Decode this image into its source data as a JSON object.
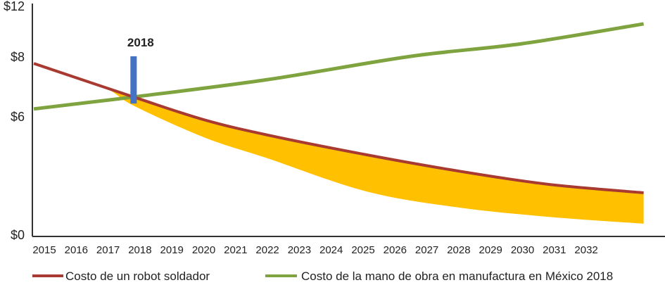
{
  "chart_data": {
    "type": "line",
    "title": "",
    "xlabel": "",
    "ylabel": "",
    "x_ticks": [
      2015,
      2016,
      2017,
      2018,
      2019,
      2020,
      2021,
      2022,
      2023,
      2024,
      2025,
      2026,
      2027,
      2028,
      2029,
      2030,
      2031,
      2032
    ],
    "y_ticks": [
      {
        "value": 12,
        "label": "$12"
      },
      {
        "value": 8,
        "label": "$8"
      },
      {
        "value": 6,
        "label": "$6"
      },
      {
        "value": 0,
        "label": "$0"
      }
    ],
    "ylim": [
      0,
      12
    ],
    "xlim": [
      2014.67,
      2033.8
    ],
    "series": [
      {
        "name": "Costo de un robot soldador",
        "color": "#a83a32",
        "points": [
          [
            2014.67,
            7.76
          ],
          [
            2017.8,
            6.64
          ],
          [
            2020.0,
            5.82
          ],
          [
            2022.0,
            5.04
          ],
          [
            2025.1,
            4.04
          ],
          [
            2028.0,
            3.21
          ],
          [
            2030.8,
            2.54
          ],
          [
            2033.8,
            2.11
          ]
        ]
      },
      {
        "name": "Costo de la mano de obra en manufactura en México 2018",
        "color": "#7ea33f",
        "points": [
          [
            2014.67,
            6.24
          ],
          [
            2017.8,
            6.64
          ],
          [
            2022.0,
            7.22
          ],
          [
            2026.5,
            8.0
          ],
          [
            2030.0,
            9.0
          ],
          [
            2033.8,
            10.56
          ]
        ]
      }
    ],
    "band": {
      "color": "#ffc000",
      "lower": [
        [
          2014.9,
          7.71
        ],
        [
          2016.9,
          6.94
        ],
        [
          2017.8,
          6.35
        ],
        [
          2020.0,
          4.93
        ],
        [
          2022.0,
          3.86
        ],
        [
          2025.1,
          2.18
        ],
        [
          2028.0,
          1.36
        ],
        [
          2030.8,
          0.89
        ],
        [
          2033.8,
          0.54
        ]
      ]
    },
    "marker": {
      "label": "2018",
      "x": 2017.8,
      "y_from": 8.0,
      "y_to": 6.42,
      "color": "#4472c4"
    },
    "legend": {
      "placement": "bottom"
    }
  }
}
